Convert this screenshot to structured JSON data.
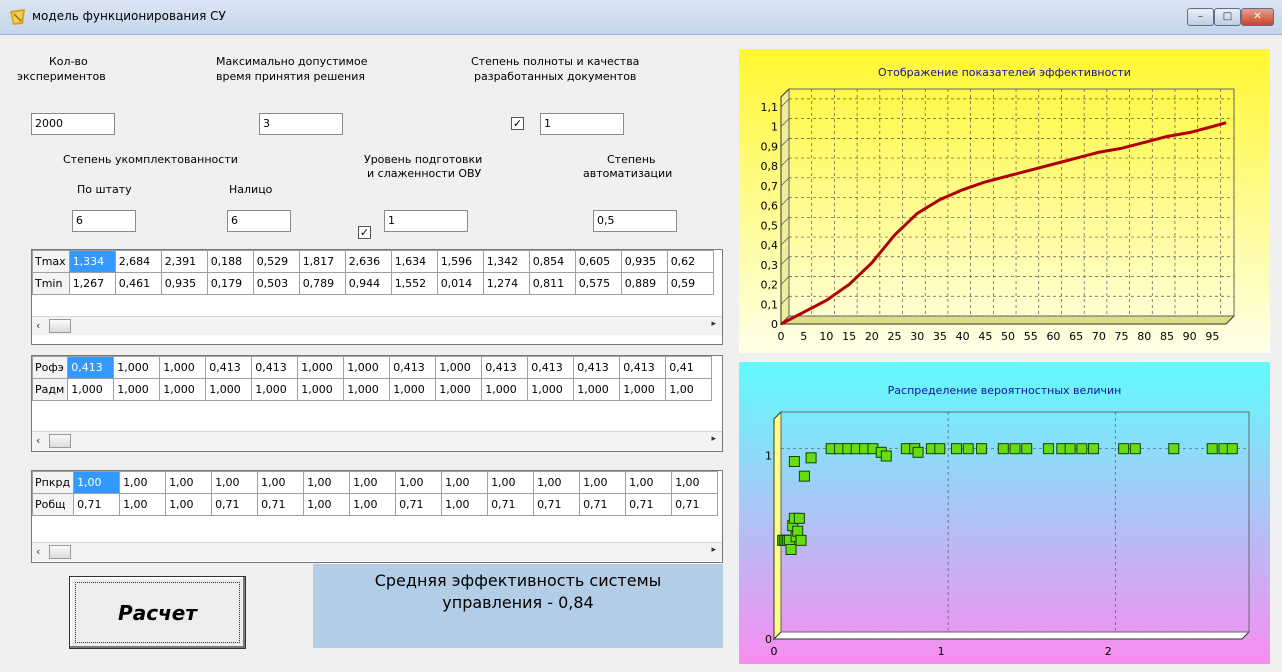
{
  "window": {
    "title": "модель функционирования СУ",
    "controls": [
      "minimize-icon",
      "maximize-icon",
      "close-icon"
    ]
  },
  "params": {
    "experiments_label_1": "Кол-во",
    "experiments_label_2": "экспериментов",
    "experiments_value": "2000",
    "max_time_label_1": "Максимально допустимое",
    "max_time_label_2": "время принятия решения",
    "max_time_value": "3",
    "doc_quality_label_1": "Степень полноты и качества",
    "doc_quality_label_2": "разработанных документов",
    "doc_quality_checked": true,
    "doc_quality_value": "1",
    "staffing_label": "Степень укомплектованности",
    "by_staff_label": "По штату",
    "by_staff_value": "6",
    "present_label": "Налицо",
    "present_value": "6",
    "training_label_1": "Уровень подготовки",
    "training_label_2": "и слаженности ОВУ",
    "training_checked": true,
    "training_value": "1",
    "automation_label_1": "Степень",
    "automation_label_2": "автоматизации",
    "automation_value": "0,5"
  },
  "grids": [
    {
      "rows": [
        {
          "header": "Tmax",
          "cells": [
            "1,334",
            "2,684",
            "2,391",
            "0,188",
            "0,529",
            "1,817",
            "2,636",
            "1,634",
            "1,596",
            "1,342",
            "0,854",
            "0,605",
            "0,935",
            "0,62"
          ]
        },
        {
          "header": "Tmin",
          "cells": [
            "1,267",
            "0,461",
            "0,935",
            "0,179",
            "0,503",
            "0,789",
            "0,944",
            "1,552",
            "0,014",
            "1,274",
            "0,811",
            "0,575",
            "0,889",
            "0,59"
          ]
        }
      ]
    },
    {
      "rows": [
        {
          "header": "Pофэ",
          "cells": [
            "0,413",
            "1,000",
            "1,000",
            "0,413",
            "0,413",
            "1,000",
            "1,000",
            "0,413",
            "1,000",
            "0,413",
            "0,413",
            "0,413",
            "0,413",
            "0,41"
          ]
        },
        {
          "header": "Pадм",
          "cells": [
            "1,000",
            "1,000",
            "1,000",
            "1,000",
            "1,000",
            "1,000",
            "1,000",
            "1,000",
            "1,000",
            "1,000",
            "1,000",
            "1,000",
            "1,000",
            "1,00"
          ]
        }
      ]
    },
    {
      "rows": [
        {
          "header": "Pпкрд",
          "cells": [
            "1,00",
            "1,00",
            "1,00",
            "1,00",
            "1,00",
            "1,00",
            "1,00",
            "1,00",
            "1,00",
            "1,00",
            "1,00",
            "1,00",
            "1,00",
            "1,00"
          ]
        },
        {
          "header": "Pобщ",
          "cells": [
            "0,71",
            "1,00",
            "1,00",
            "0,71",
            "0,71",
            "1,00",
            "1,00",
            "0,71",
            "1,00",
            "0,71",
            "0,71",
            "0,71",
            "0,71",
            "0,71"
          ]
        }
      ]
    }
  ],
  "calc_button": "Расчет",
  "result_line1": "Средняя эффективность системы",
  "result_line2": "управления - 0,84",
  "chart_data": [
    {
      "type": "line",
      "title": "Отображение показателей эффективности",
      "xlim": [
        0,
        98
      ],
      "ylim": [
        0,
        1.15
      ],
      "x_ticks": [
        "0",
        "5",
        "10",
        "15",
        "20",
        "25",
        "30",
        "35",
        "40",
        "45",
        "50",
        "55",
        "60",
        "65",
        "70",
        "75",
        "80",
        "85",
        "90",
        "95"
      ],
      "y_ticks": [
        "0",
        "0,1",
        "0,2",
        "0,3",
        "0,4",
        "0,5",
        "0,6",
        "0,7",
        "0,8",
        "0,9",
        "1",
        "1,1"
      ],
      "grid": true,
      "series": [
        {
          "color": "#000000",
          "x": [
            0,
            5,
            10,
            15,
            20,
            25,
            30,
            35,
            40,
            45,
            50,
            55,
            60,
            65,
            70,
            75,
            80,
            85,
            90,
            95,
            98
          ],
          "y": [
            0,
            0.06,
            0.12,
            0.2,
            0.31,
            0.45,
            0.56,
            0.63,
            0.68,
            0.72,
            0.75,
            0.78,
            0.81,
            0.84,
            0.87,
            0.89,
            0.92,
            0.95,
            0.97,
            1.0,
            1.02
          ]
        },
        {
          "color": "#b00000",
          "x": [
            0,
            5,
            10,
            15,
            20,
            25,
            30,
            35,
            40,
            45,
            50,
            55,
            60,
            65,
            70,
            75,
            80,
            85,
            90,
            95,
            98
          ],
          "y": [
            0,
            0.06,
            0.12,
            0.2,
            0.31,
            0.45,
            0.56,
            0.63,
            0.68,
            0.72,
            0.75,
            0.78,
            0.81,
            0.84,
            0.87,
            0.89,
            0.92,
            0.95,
            0.97,
            1.0,
            1.02
          ]
        }
      ]
    },
    {
      "type": "scatter",
      "title": "Распределение вероятностных величин",
      "xlim": [
        0,
        2.8
      ],
      "ylim": [
        0,
        1.2
      ],
      "x_ticks": [
        "0",
        "1",
        "2"
      ],
      "y_ticks": [
        "0",
        "1"
      ],
      "grid": true,
      "marker_color": "#66dd11",
      "points": [
        {
          "x": 0.01,
          "y": 0.5
        },
        {
          "x": 0.02,
          "y": 0.5
        },
        {
          "x": 0.03,
          "y": 0.5
        },
        {
          "x": 0.04,
          "y": 0.5
        },
        {
          "x": 0.05,
          "y": 0.5
        },
        {
          "x": 0.06,
          "y": 0.45
        },
        {
          "x": 0.07,
          "y": 0.58
        },
        {
          "x": 0.08,
          "y": 0.62
        },
        {
          "x": 0.09,
          "y": 0.52
        },
        {
          "x": 0.1,
          "y": 0.55
        },
        {
          "x": 0.11,
          "y": 0.62
        },
        {
          "x": 0.12,
          "y": 0.5
        },
        {
          "x": 0.08,
          "y": 0.93
        },
        {
          "x": 0.14,
          "y": 0.85
        },
        {
          "x": 0.18,
          "y": 0.95
        },
        {
          "x": 0.3,
          "y": 1
        },
        {
          "x": 0.35,
          "y": 1
        },
        {
          "x": 0.4,
          "y": 1
        },
        {
          "x": 0.45,
          "y": 1
        },
        {
          "x": 0.5,
          "y": 1
        },
        {
          "x": 0.55,
          "y": 1
        },
        {
          "x": 0.6,
          "y": 0.98
        },
        {
          "x": 0.63,
          "y": 0.96
        },
        {
          "x": 0.75,
          "y": 1
        },
        {
          "x": 0.8,
          "y": 1
        },
        {
          "x": 0.82,
          "y": 0.98
        },
        {
          "x": 0.9,
          "y": 1
        },
        {
          "x": 0.95,
          "y": 1
        },
        {
          "x": 1.05,
          "y": 1
        },
        {
          "x": 1.12,
          "y": 1
        },
        {
          "x": 1.2,
          "y": 1
        },
        {
          "x": 1.33,
          "y": 1
        },
        {
          "x": 1.4,
          "y": 1
        },
        {
          "x": 1.47,
          "y": 1
        },
        {
          "x": 1.6,
          "y": 1
        },
        {
          "x": 1.68,
          "y": 1
        },
        {
          "x": 1.73,
          "y": 1
        },
        {
          "x": 1.8,
          "y": 1
        },
        {
          "x": 1.87,
          "y": 1
        },
        {
          "x": 2.05,
          "y": 1
        },
        {
          "x": 2.12,
          "y": 1
        },
        {
          "x": 2.35,
          "y": 1
        },
        {
          "x": 2.58,
          "y": 1
        },
        {
          "x": 2.65,
          "y": 1
        },
        {
          "x": 2.7,
          "y": 1
        }
      ]
    }
  ]
}
